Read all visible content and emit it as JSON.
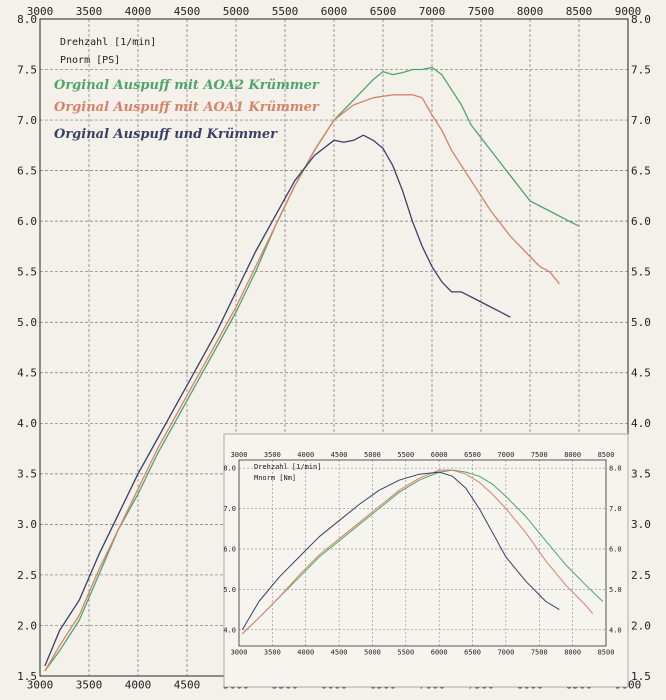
{
  "chart_data": [
    {
      "type": "line",
      "title": "",
      "ylabel_lines": [
        "Drehzahl [1/min]",
        "Pnorm [PS]"
      ],
      "xlim": [
        3000,
        9000
      ],
      "ylim": [
        1.5,
        8.0
      ],
      "x_ticks": [
        3000,
        3500,
        4000,
        4500,
        5000,
        5500,
        6000,
        6500,
        7000,
        7500,
        8000,
        8500,
        9000
      ],
      "x_tick_labels": [
        "3000",
        "3500",
        "4000",
        "4500",
        "5000",
        "5500",
        "6000",
        "6500",
        "7000",
        "7500",
        "8000",
        "8500",
        "9000"
      ],
      "y_ticks": [
        1.5,
        2.0,
        2.5,
        3.0,
        3.5,
        4.0,
        4.5,
        5.0,
        5.5,
        6.0,
        6.5,
        7.0,
        7.5,
        8.0
      ],
      "y_tick_labels": [
        "1.5",
        "2.0",
        "2.5",
        "3.0",
        "3.5",
        "4.0",
        "4.5",
        "5.0",
        "5.5",
        "6.0",
        "6.5",
        "7.0",
        "7.5",
        "8.0"
      ],
      "grid": true,
      "legend_position": "top-left",
      "series": [
        {
          "name": "Orginal Auspuff mit AOA2 Krümmer",
          "color": "#4fa36b",
          "x": [
            3050,
            3200,
            3400,
            3600,
            3800,
            4000,
            4200,
            4400,
            4600,
            4800,
            5000,
            5200,
            5400,
            5600,
            5800,
            6000,
            6200,
            6400,
            6500,
            6600,
            6700,
            6800,
            6900,
            7000,
            7100,
            7200,
            7300,
            7400,
            7600,
            7800,
            8000,
            8100,
            8200,
            8400,
            8500
          ],
          "y": [
            1.55,
            1.75,
            2.05,
            2.5,
            2.95,
            3.3,
            3.7,
            4.05,
            4.4,
            4.75,
            5.1,
            5.5,
            5.95,
            6.35,
            6.7,
            7.0,
            7.2,
            7.4,
            7.48,
            7.45,
            7.47,
            7.5,
            7.5,
            7.52,
            7.45,
            7.3,
            7.15,
            6.95,
            6.7,
            6.45,
            6.2,
            6.15,
            6.1,
            6.0,
            5.95
          ]
        },
        {
          "name": "Orginal Auspuff mit AOA1 Krümmer",
          "color": "#d9826a",
          "x": [
            3050,
            3200,
            3400,
            3600,
            3800,
            4000,
            4200,
            4400,
            4600,
            4800,
            5000,
            5200,
            5400,
            5600,
            5800,
            6000,
            6200,
            6400,
            6600,
            6800,
            6900,
            7000,
            7100,
            7200,
            7400,
            7600,
            7800,
            8000,
            8100,
            8200,
            8300
          ],
          "y": [
            1.55,
            1.8,
            2.1,
            2.55,
            2.95,
            3.35,
            3.75,
            4.1,
            4.45,
            4.8,
            5.15,
            5.55,
            5.95,
            6.35,
            6.7,
            7.0,
            7.15,
            7.22,
            7.25,
            7.25,
            7.22,
            7.05,
            6.9,
            6.7,
            6.4,
            6.1,
            5.85,
            5.65,
            5.55,
            5.5,
            5.38
          ]
        },
        {
          "name": "Orginal Auspuff und Krümmer",
          "color": "#3b3f66",
          "x": [
            3050,
            3200,
            3400,
            3600,
            3800,
            4000,
            4200,
            4400,
            4600,
            4800,
            5000,
            5200,
            5400,
            5600,
            5800,
            6000,
            6100,
            6200,
            6300,
            6400,
            6500,
            6600,
            6700,
            6800,
            6900,
            7000,
            7100,
            7200,
            7300,
            7500,
            7700,
            7800
          ],
          "y": [
            1.6,
            1.95,
            2.25,
            2.7,
            3.1,
            3.5,
            3.85,
            4.2,
            4.55,
            4.9,
            5.3,
            5.7,
            6.05,
            6.4,
            6.65,
            6.8,
            6.78,
            6.8,
            6.85,
            6.8,
            6.72,
            6.55,
            6.3,
            6.0,
            5.75,
            5.55,
            5.4,
            5.3,
            5.3,
            5.2,
            5.1,
            5.05
          ]
        }
      ]
    },
    {
      "type": "line",
      "title": "",
      "ylabel_lines": [
        "Drehzahl [1/min]",
        "Mnorm [Nm]"
      ],
      "xlim": [
        3000,
        8500
      ],
      "ylim": [
        3.6,
        8.2
      ],
      "x_ticks": [
        3000,
        3500,
        4000,
        4500,
        5000,
        5500,
        6000,
        6500,
        7000,
        7500,
        8000,
        8500
      ],
      "x_tick_labels": [
        "3000",
        "3500",
        "4000",
        "4500",
        "5000",
        "5500",
        "6000",
        "6500",
        "7000",
        "7500",
        "8000",
        "8500"
      ],
      "y_ticks": [
        4.0,
        5.0,
        6.0,
        7.0,
        8.0
      ],
      "y_tick_labels": [
        "4.0",
        "5.0",
        "6.0",
        "7.0",
        "8.0"
      ],
      "grid": true,
      "series": [
        {
          "color": "#4fa36b",
          "x": [
            3050,
            3300,
            3600,
            3900,
            4200,
            4500,
            4800,
            5100,
            5400,
            5700,
            6000,
            6200,
            6400,
            6600,
            6800,
            7000,
            7300,
            7600,
            7900,
            8200,
            8450
          ],
          "y": [
            3.9,
            4.3,
            4.8,
            5.3,
            5.8,
            6.2,
            6.6,
            7.0,
            7.4,
            7.7,
            7.9,
            7.95,
            7.9,
            7.8,
            7.6,
            7.3,
            6.8,
            6.2,
            5.6,
            5.1,
            4.7
          ]
        },
        {
          "color": "#d9826a",
          "x": [
            3050,
            3300,
            3600,
            3900,
            4200,
            4500,
            4800,
            5100,
            5400,
            5700,
            6000,
            6200,
            6400,
            6600,
            6800,
            7000,
            7300,
            7600,
            7900,
            8200,
            8300
          ],
          "y": [
            3.9,
            4.3,
            4.8,
            5.35,
            5.85,
            6.25,
            6.65,
            7.05,
            7.45,
            7.75,
            7.95,
            7.95,
            7.85,
            7.65,
            7.35,
            7.0,
            6.4,
            5.7,
            5.1,
            4.6,
            4.4
          ]
        },
        {
          "color": "#3b3f66",
          "x": [
            3050,
            3300,
            3600,
            3900,
            4200,
            4500,
            4800,
            5100,
            5400,
            5700,
            6000,
            6200,
            6400,
            6600,
            6800,
            7000,
            7300,
            7600,
            7800
          ],
          "y": [
            4.0,
            4.7,
            5.3,
            5.8,
            6.3,
            6.7,
            7.1,
            7.45,
            7.7,
            7.85,
            7.9,
            7.8,
            7.5,
            7.0,
            6.4,
            5.8,
            5.2,
            4.7,
            4.5
          ]
        }
      ]
    }
  ]
}
